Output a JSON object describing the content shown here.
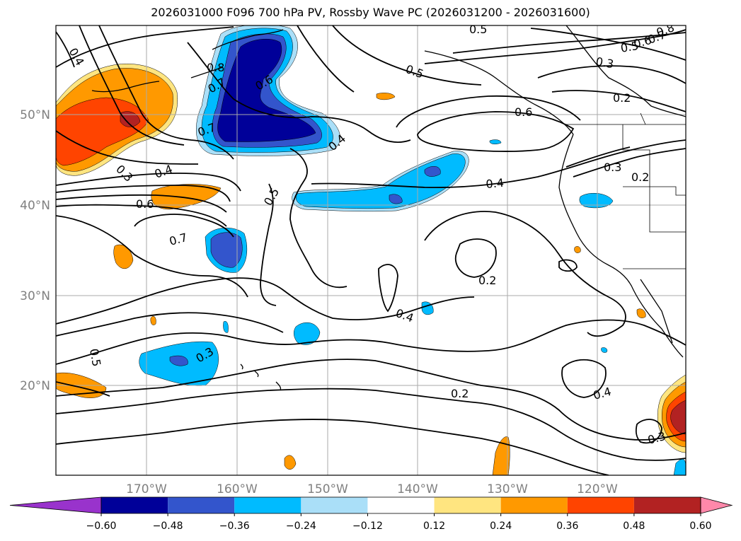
{
  "title": "2026031000 F096 700 hPa PV, Rossby Wave PC (2026031200 - 2026031600)",
  "lat_labels": [
    "50°N",
    "40°N",
    "30°N",
    "20°N"
  ],
  "lon_labels": [
    "170°W",
    "160°W",
    "150°W",
    "140°W",
    "130°W",
    "120°W"
  ],
  "contour_labels": [
    {
      "text": "0.4",
      "rot": 60
    },
    {
      "text": "0.5",
      "rot": 0
    },
    {
      "text": "0.8",
      "rot": 0
    },
    {
      "text": "0.7",
      "rot": -30
    },
    {
      "text": "0.6",
      "rot": -30
    },
    {
      "text": "0.7",
      "rot": -20
    },
    {
      "text": "0.3",
      "rot": 45
    },
    {
      "text": "0.4",
      "rot": -20
    },
    {
      "text": "0.6",
      "rot": 0
    },
    {
      "text": "0.7",
      "rot": -15
    },
    {
      "text": "0.5",
      "rot": -60
    },
    {
      "text": "0.4",
      "rot": -40
    },
    {
      "text": "0.5",
      "rot": 20
    },
    {
      "text": "0.6",
      "rot": 0
    },
    {
      "text": "0.3",
      "rot": 10
    },
    {
      "text": "0.2",
      "rot": 0
    },
    {
      "text": "0.5",
      "rot": -10
    },
    {
      "text": "0.6",
      "rot": -15
    },
    {
      "text": "0.7",
      "rot": -20
    },
    {
      "text": "0.8",
      "rot": -20
    },
    {
      "text": "0.4",
      "rot": -5
    },
    {
      "text": "0.3",
      "rot": 0
    },
    {
      "text": "0.2",
      "rot": 0
    },
    {
      "text": "0.2",
      "rot": 0
    },
    {
      "text": "0.4",
      "rot": 20
    },
    {
      "text": "0.3",
      "rot": -30
    },
    {
      "text": "0.5",
      "rot": 80
    },
    {
      "text": "0.2",
      "rot": 0
    },
    {
      "text": "0.4",
      "rot": -15
    },
    {
      "text": "0.3",
      "rot": -15
    }
  ],
  "colorbar": {
    "ticks": [
      "−0.60",
      "−0.48",
      "−0.36",
      "−0.24",
      "−0.12",
      "0.12",
      "0.24",
      "0.36",
      "0.48",
      "0.60"
    ],
    "colors": [
      "#9933cc",
      "#000099",
      "#3355cc",
      "#00bbff",
      "#aadff8",
      "#ffffff",
      "#ffe580",
      "#ff9900",
      "#ff4400",
      "#b22222",
      "#ff88aa"
    ]
  },
  "fill_colors": {
    "neg_strong": "#000099",
    "neg_mid": "#3355cc",
    "neg_light": "#00bbff",
    "neg_pale": "#aadff8",
    "pos_pale": "#ffe580",
    "pos_light": "#ff9900",
    "pos_mid": "#ff4400",
    "pos_strong": "#b22222"
  }
}
